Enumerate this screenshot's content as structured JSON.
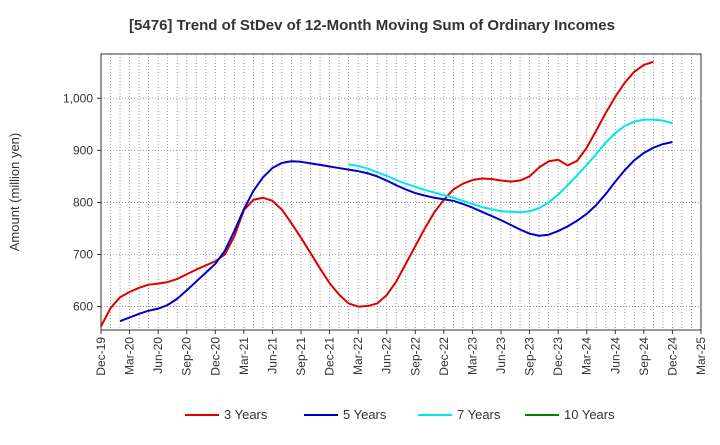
{
  "chart_data": {
    "type": "line",
    "title": "[5476]  Trend of StDev of 12-Month Moving Sum of Ordinary Incomes",
    "xlabel": "",
    "ylabel": "Amount (million yen)",
    "ylim": [
      555,
      1085
    ],
    "yticks": [
      600,
      700,
      800,
      900,
      1000
    ],
    "ytick_labels": [
      "600",
      "700",
      "800",
      "900",
      "1,000"
    ],
    "grid": true,
    "legend_position": "bottom",
    "x_tick_labels": [
      "Dec-19",
      "Mar-20",
      "Jun-20",
      "Sep-20",
      "Dec-20",
      "Mar-21",
      "Jun-21",
      "Sep-21",
      "Dec-21",
      "Mar-22",
      "Jun-22",
      "Sep-22",
      "Dec-22",
      "Mar-23",
      "Jun-23",
      "Sep-23",
      "Dec-23",
      "Mar-24",
      "Jun-24",
      "Sep-24",
      "Dec-24",
      "Mar-25"
    ],
    "series": [
      {
        "name": "3 Years",
        "color": "#dd0000",
        "start_index": 0,
        "values": [
          562,
          597,
          618,
          628,
          636,
          642,
          644,
          647,
          653,
          662,
          671,
          679,
          687,
          700,
          735,
          785,
          805,
          809,
          803,
          786,
          760,
          732,
          703,
          673,
          645,
          623,
          606,
          600,
          601,
          606,
          622,
          648,
          682,
          716,
          750,
          781,
          805,
          825,
          836,
          843,
          846,
          845,
          842,
          840,
          842,
          850,
          867,
          879,
          882,
          871,
          880,
          905,
          938,
          972,
          1003,
          1030,
          1051,
          1064,
          1070
        ]
      },
      {
        "name": "5 Years",
        "color": "#0000cc",
        "start_index": 2,
        "values": [
          572,
          579,
          586,
          592,
          596,
          603,
          615,
          631,
          648,
          665,
          682,
          707,
          745,
          787,
          822,
          848,
          866,
          876,
          879,
          878,
          875,
          872,
          869,
          866,
          863,
          860,
          856,
          850,
          842,
          833,
          825,
          818,
          813,
          809,
          806,
          803,
          797,
          790,
          782,
          774,
          766,
          757,
          748,
          740,
          736,
          738,
          745,
          754,
          765,
          778,
          795,
          816,
          840,
          862,
          881,
          895,
          905,
          912,
          916
        ]
      },
      {
        "name": "7 Years",
        "color": "#00e5ee",
        "start_index": 26,
        "values": [
          873,
          870,
          865,
          858,
          851,
          843,
          836,
          830,
          824,
          819,
          814,
          809,
          803,
          797,
          791,
          787,
          783,
          782,
          781,
          783,
          789,
          800,
          815,
          833,
          852,
          872,
          893,
          915,
          933,
          947,
          955,
          959,
          959,
          957,
          952
        ]
      },
      {
        "name": "10 Years",
        "color": "#008000",
        "start_index": 0,
        "values": []
      }
    ]
  }
}
